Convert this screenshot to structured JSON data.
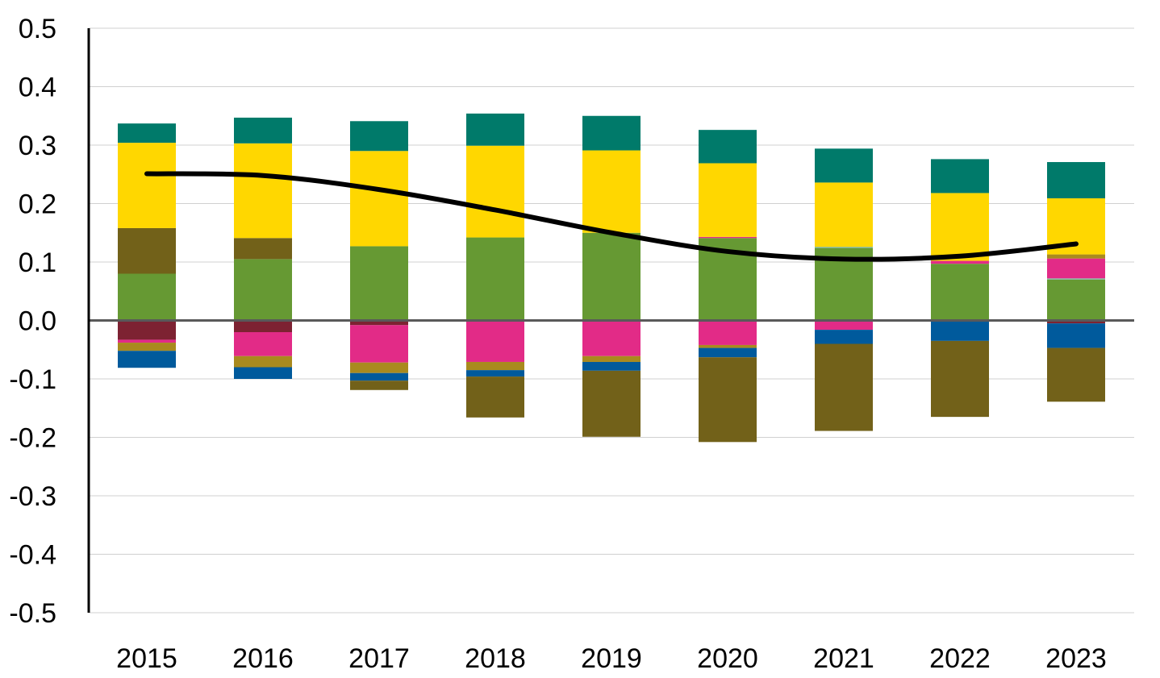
{
  "chart_data": {
    "type": "bar",
    "stacked": true,
    "title": "",
    "xlabel": "",
    "ylabel": "",
    "ylim": [
      -0.5,
      0.5
    ],
    "yticks": [
      0.5,
      0.4,
      0.3,
      0.2,
      0.1,
      0.0,
      -0.1,
      -0.2,
      -0.3,
      -0.4,
      -0.5
    ],
    "ytick_labels": [
      "0.5",
      "0.4",
      "0.3",
      "0.2",
      "0.1",
      "0.0",
      "-0.1",
      "-0.2",
      "-0.3",
      "-0.4",
      "-0.5"
    ],
    "categories": [
      "2015",
      "2016",
      "2017",
      "2018",
      "2019",
      "2020",
      "2021",
      "2022",
      "2023"
    ],
    "grid": true,
    "legend": "none",
    "positive_series": [
      {
        "color": "#669933",
        "values": [
          0.08,
          0.105,
          0.127,
          0.142,
          0.15,
          0.141,
          0.124,
          0.097,
          0.07
        ]
      },
      {
        "color": "#7FB7A0",
        "values": [
          0.0,
          0.0,
          0.0,
          0.0,
          0.0,
          0.0,
          0.002,
          0.0,
          0.002
        ]
      },
      {
        "color": "#E22B87",
        "values": [
          0.0,
          0.0,
          0.0,
          0.0,
          0.0,
          0.002,
          0.0,
          0.005,
          0.034
        ]
      },
      {
        "color": "#A98A1E",
        "values": [
          0.0,
          0.0,
          0.0,
          0.0,
          0.0,
          0.0,
          0.0,
          0.0,
          0.007
        ]
      },
      {
        "color": "#726119",
        "values": [
          0.078,
          0.036,
          0.0,
          0.0,
          0.0,
          0.0,
          0.0,
          0.0,
          0.0
        ]
      },
      {
        "color": "#FFD700",
        "values": [
          0.146,
          0.162,
          0.163,
          0.157,
          0.141,
          0.126,
          0.11,
          0.116,
          0.096
        ]
      },
      {
        "color": "#007A6A",
        "values": [
          0.033,
          0.044,
          0.051,
          0.055,
          0.059,
          0.057,
          0.058,
          0.058,
          0.062
        ]
      }
    ],
    "negative_series": [
      {
        "color": "#7D2232",
        "values": [
          -0.033,
          -0.02,
          -0.008,
          0.0,
          0.0,
          0.0,
          0.0,
          0.0,
          -0.005
        ]
      },
      {
        "color": "#E22B87",
        "values": [
          -0.005,
          -0.041,
          -0.064,
          -0.071,
          -0.061,
          -0.042,
          -0.016,
          0.0,
          0.0
        ]
      },
      {
        "color": "#A98A1E",
        "values": [
          -0.014,
          -0.019,
          -0.018,
          -0.014,
          -0.01,
          -0.005,
          0.0,
          0.0,
          0.0
        ]
      },
      {
        "color": "#005A9C",
        "values": [
          -0.029,
          -0.02,
          -0.013,
          -0.011,
          -0.015,
          -0.016,
          -0.024,
          -0.035,
          -0.042
        ]
      },
      {
        "color": "#726119",
        "values": [
          0.0,
          0.0,
          -0.016,
          -0.07,
          -0.113,
          -0.145,
          -0.149,
          -0.13,
          -0.092
        ]
      }
    ],
    "line_series": {
      "color": "#000000",
      "values": [
        0.251,
        0.248,
        0.224,
        0.189,
        0.15,
        0.118,
        0.105,
        0.11,
        0.131
      ]
    }
  }
}
